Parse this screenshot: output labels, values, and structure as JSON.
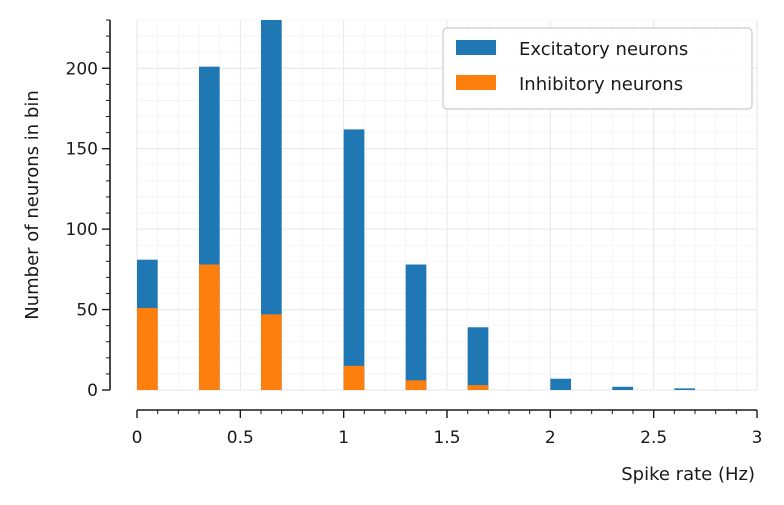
{
  "chart_data": {
    "type": "bar",
    "xlabel": "Spike rate (Hz)",
    "ylabel": "Number of neurons in bin",
    "xlim": [
      0,
      3
    ],
    "ylim": [
      0,
      230
    ],
    "bar_width": 0.1,
    "x_ticks": [
      "0",
      "0.5",
      "1",
      "1.5",
      "2",
      "2.5",
      "3"
    ],
    "x_tick_values": [
      0,
      0.5,
      1,
      1.5,
      2,
      2.5,
      3
    ],
    "y_ticks": [
      "0",
      "50",
      "100",
      "150",
      "200"
    ],
    "y_tick_values": [
      0,
      50,
      100,
      150,
      200
    ],
    "grid": true,
    "legend_position": "top-right",
    "series": [
      {
        "name": "Excitatory neurons",
        "color": "#1f77b4",
        "x": [
          0.05,
          0.35,
          0.65,
          1.05,
          1.35,
          1.65,
          2.05,
          2.35,
          2.65
        ],
        "values": [
          81,
          201,
          230,
          162,
          78,
          39,
          7,
          2,
          1
        ]
      },
      {
        "name": "Inhibitory neurons",
        "color": "#ff7f0e",
        "x": [
          0.05,
          0.35,
          0.65,
          1.05,
          1.35,
          1.65
        ],
        "values": [
          51,
          78,
          47,
          15,
          6,
          3
        ]
      }
    ]
  }
}
